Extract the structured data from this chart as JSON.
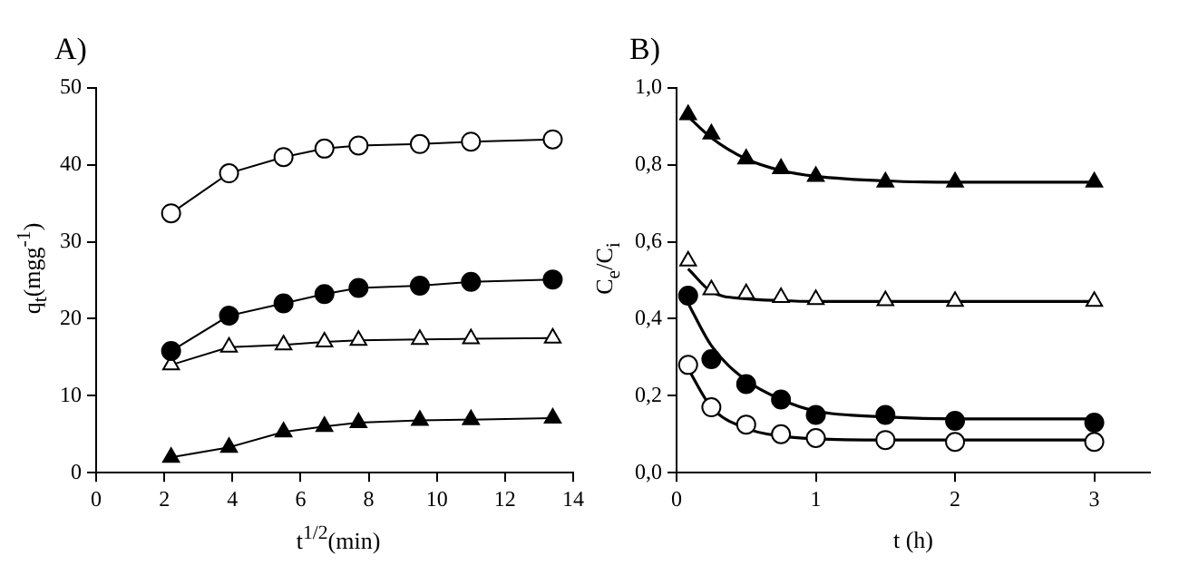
{
  "chart_data": [
    {
      "type": "line",
      "title": "A)",
      "xlabel": "t$^{1/2}$(min)",
      "ylabel": "q$_{t}$(mgg$^{-1}$)",
      "xlim": [
        0,
        14
      ],
      "xticks": [
        0,
        2,
        4,
        6,
        8,
        10,
        12,
        14
      ],
      "ylim": [
        0,
        50
      ],
      "yticks": [
        0,
        10,
        20,
        30,
        40,
        50
      ],
      "grid": false,
      "legend": false,
      "x": [
        2.2,
        3.9,
        5.5,
        6.7,
        7.7,
        9.5,
        11,
        13.4
      ],
      "series": [
        {
          "color": "#ffffff",
          "marker": "circle",
          "values": [
            33.7,
            38.9,
            41,
            42.1,
            42.5,
            42.7,
            43,
            43.3
          ]
        },
        {
          "color": "#000000",
          "marker": "circle",
          "values": [
            15.8,
            20.4,
            22,
            23.2,
            24,
            24.3,
            24.8,
            25.1
          ]
        },
        {
          "color": "#ffffff",
          "marker": "triangle",
          "values": [
            14,
            16.3,
            16.6,
            17,
            17.2,
            17.3,
            17.4,
            17.5
          ]
        },
        {
          "color": "#000000",
          "marker": "triangle",
          "values": [
            2,
            3.3,
            5.3,
            6,
            6.5,
            6.8,
            6.9,
            7.1
          ]
        }
      ]
    },
    {
      "type": "scatter",
      "title": "B)",
      "xlabel": "t (h)",
      "ylabel": "C$_{e}$/C$_{i}$",
      "xlim": [
        0,
        3.4
      ],
      "xticks": [
        0,
        1,
        2,
        3
      ],
      "ylim": [
        0,
        1
      ],
      "yticks": [
        {
          "value": 0,
          "label": "0,0"
        },
        {
          "value": 0.2,
          "label": "0,2"
        },
        {
          "value": 0.4,
          "label": "0,4"
        },
        {
          "value": 0.6,
          "label": "0,6"
        },
        {
          "value": 0.8,
          "label": "0,8"
        },
        {
          "value": 1,
          "label": "1,0"
        }
      ],
      "grid": false,
      "legend": false,
      "x": [
        0.083,
        0.25,
        0.5,
        0.75,
        1,
        1.5,
        2,
        3
      ],
      "series": [
        {
          "color": "#000000",
          "marker": "triangle",
          "values": [
            0.93,
            0.88,
            0.815,
            0.79,
            0.77,
            0.755,
            0.755,
            0.755
          ]
        },
        {
          "color": "#ffffff",
          "marker": "triangle",
          "values": [
            0.55,
            0.475,
            0.465,
            0.455,
            0.45,
            0.447,
            0.445,
            0.445
          ]
        },
        {
          "color": "#000000",
          "marker": "circle",
          "values": [
            0.46,
            0.295,
            0.23,
            0.19,
            0.15,
            0.15,
            0.135,
            0.13
          ]
        },
        {
          "color": "#ffffff",
          "marker": "circle",
          "values": [
            0.28,
            0.17,
            0.125,
            0.1,
            0.09,
            0.085,
            0.08,
            0.08
          ]
        },
        {
          "type": "line",
          "color": "#000000",
          "marker": "none",
          "x": [
            0.083,
            0.25,
            0.5,
            0.75,
            1,
            1.5,
            2,
            3
          ],
          "values": [
            0.925,
            0.87,
            0.815,
            0.785,
            0.77,
            0.758,
            0.755,
            0.755
          ]
        },
        {
          "type": "line",
          "color": "#000000",
          "marker": "none",
          "x": [
            0.083,
            0.25,
            0.5,
            0.75,
            1,
            1.5,
            2,
            3
          ],
          "values": [
            0.53,
            0.47,
            0.452,
            0.447,
            0.445,
            0.445,
            0.445,
            0.445
          ]
        },
        {
          "type": "line",
          "color": "#000000",
          "marker": "none",
          "x": [
            0.083,
            0.25,
            0.5,
            0.75,
            1,
            1.5,
            2,
            3
          ],
          "values": [
            0.44,
            0.33,
            0.24,
            0.19,
            0.16,
            0.145,
            0.14,
            0.14
          ]
        },
        {
          "type": "line",
          "color": "#000000",
          "marker": "none",
          "x": [
            0.083,
            0.25,
            0.5,
            0.75,
            1,
            1.5,
            2,
            3
          ],
          "values": [
            0.27,
            0.17,
            0.115,
            0.095,
            0.088,
            0.085,
            0.085,
            0.085
          ]
        }
      ]
    }
  ]
}
